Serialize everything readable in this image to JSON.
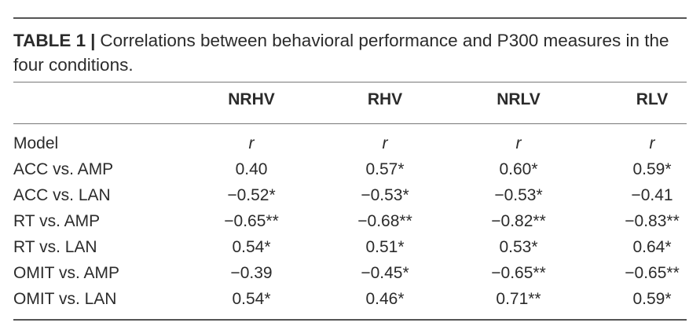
{
  "caption": {
    "label": "TABLE 1",
    "separator": "|",
    "text": "Correlations between behavioral performance and P300 measures in the four conditions."
  },
  "columns": [
    "NRHV",
    "RHV",
    "NRLV",
    "RLV"
  ],
  "subheader": {
    "label": "Model",
    "stats": [
      "r",
      "r",
      "r",
      "r"
    ]
  },
  "rows": [
    {
      "label": "ACC vs. AMP",
      "values": [
        "0.40",
        "0.57*",
        "0.60*",
        "0.59*"
      ]
    },
    {
      "label": "ACC vs. LAN",
      "values": [
        "−0.52*",
        "−0.53*",
        "−0.53*",
        "−0.41"
      ]
    },
    {
      "label": "RT vs. AMP",
      "values": [
        "−0.65**",
        "−0.68**",
        "−0.82**",
        "−0.83**"
      ]
    },
    {
      "label": "RT vs. LAN",
      "values": [
        "0.54*",
        "0.51*",
        "0.53*",
        "0.64*"
      ]
    },
    {
      "label": "OMIT vs. AMP",
      "values": [
        "−0.39",
        "−0.45*",
        "−0.65**",
        "−0.65**"
      ]
    },
    {
      "label": "OMIT vs. LAN",
      "values": [
        "0.54*",
        "0.46*",
        "0.71**",
        "0.59*"
      ]
    }
  ]
}
